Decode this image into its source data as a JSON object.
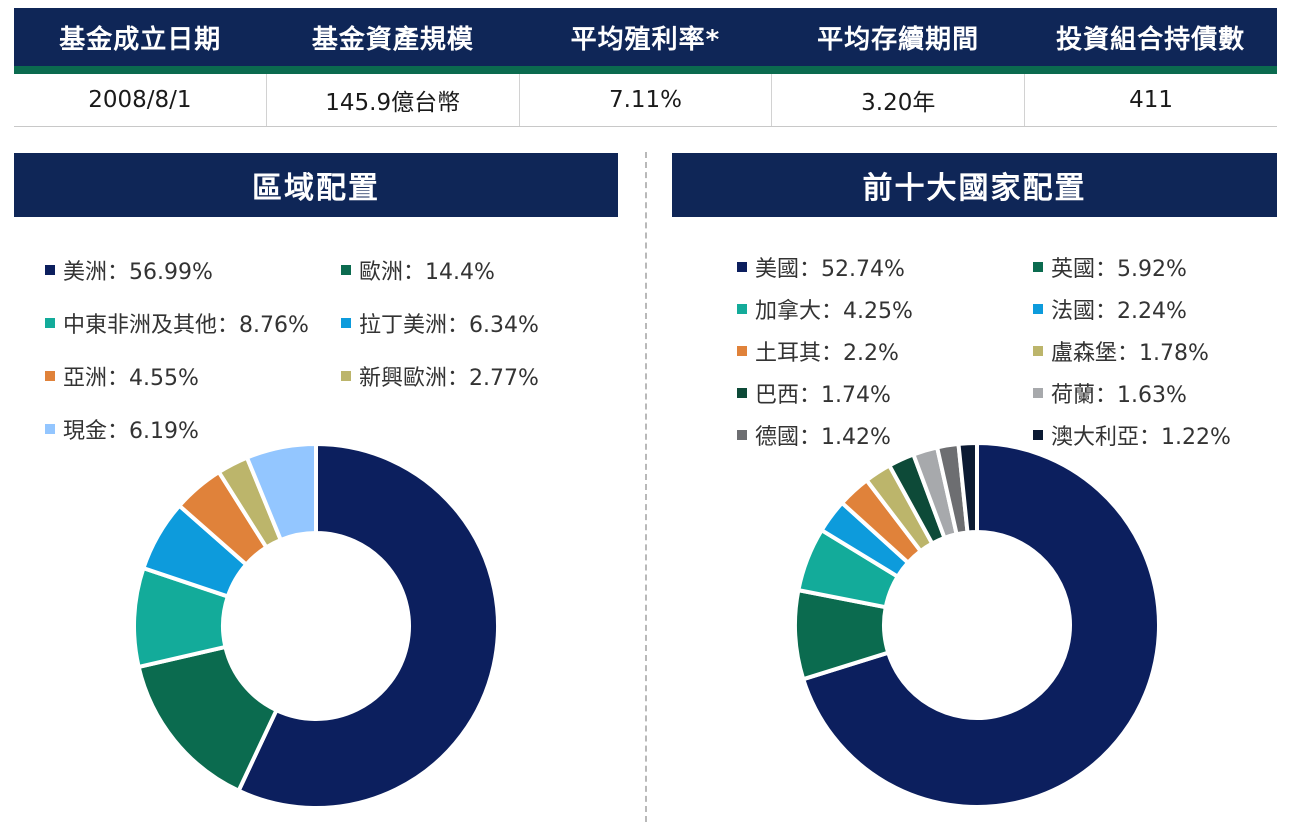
{
  "summary": {
    "headers": [
      "基金成立日期",
      "基金資產規模",
      "平均殖利率*",
      "平均存續期間",
      "投資組合持債數"
    ],
    "values": [
      "2008/8/1",
      "145.9億台幣",
      "7.11%",
      "3.20年",
      "411"
    ]
  },
  "chart_data": [
    {
      "type": "pie",
      "title": "區域配置",
      "donut": true,
      "legend_position": "top",
      "slices": [
        {
          "label": "美洲",
          "value": 56.99,
          "color": "#0c1f5e",
          "text": "美洲：56.99%"
        },
        {
          "label": "歐洲",
          "value": 14.4,
          "color": "#0b6b4f",
          "text": "歐洲：14.4%"
        },
        {
          "label": "中東非洲及其他",
          "value": 8.76,
          "color": "#13ab9a",
          "text": "中東非洲及其他：8.76%"
        },
        {
          "label": "拉丁美洲",
          "value": 6.34,
          "color": "#0d9bdc",
          "text": "拉丁美洲：6.34%"
        },
        {
          "label": "亞洲",
          "value": 4.55,
          "color": "#e0823a",
          "text": "亞洲：4.55%"
        },
        {
          "label": "新興歐洲",
          "value": 2.77,
          "color": "#bcb56b",
          "text": "新興歐洲：2.77%"
        },
        {
          "label": "現金",
          "value": 6.19,
          "color": "#93c6ff",
          "text": "現金：6.19%"
        }
      ]
    },
    {
      "type": "pie",
      "title": "前十大國家配置",
      "donut": true,
      "legend_position": "top",
      "slices": [
        {
          "label": "美國",
          "value": 52.74,
          "color": "#0c1f5e",
          "text": "美國：52.74%"
        },
        {
          "label": "英國",
          "value": 5.92,
          "color": "#0b6b4f",
          "text": "英國：5.92%"
        },
        {
          "label": "加拿大",
          "value": 4.25,
          "color": "#13ab9a",
          "text": "加拿大：4.25%"
        },
        {
          "label": "法國",
          "value": 2.24,
          "color": "#0d9bdc",
          "text": "法國：2.24%"
        },
        {
          "label": "土耳其",
          "value": 2.2,
          "color": "#e0823a",
          "text": "土耳其：2.2%"
        },
        {
          "label": "盧森堡",
          "value": 1.78,
          "color": "#bcb56b",
          "text": "盧森堡：1.78%"
        },
        {
          "label": "巴西",
          "value": 1.74,
          "color": "#0d4a38",
          "text": "巴西：1.74%"
        },
        {
          "label": "荷蘭",
          "value": 1.63,
          "color": "#a7a9ac",
          "text": "荷蘭：1.63%"
        },
        {
          "label": "德國",
          "value": 1.42,
          "color": "#6d6e71",
          "text": "德國：1.42%"
        },
        {
          "label": "澳大利亞",
          "value": 1.22,
          "color": "#0b1a33",
          "text": "澳大利亞：1.22%"
        }
      ]
    }
  ]
}
